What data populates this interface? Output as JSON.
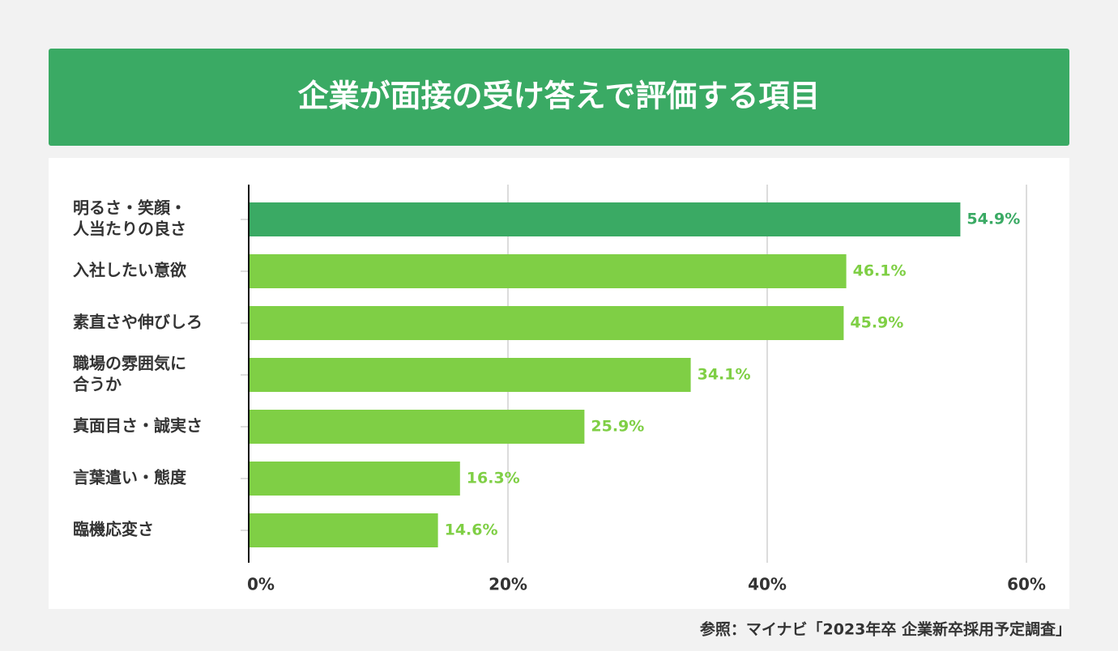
{
  "chart_data": {
    "type": "hbar",
    "title": "企業が面接の受け答えで評価する項目",
    "categories": [
      [
        "明るさ・笑顔・",
        "人当たりの良さ"
      ],
      [
        "入社したい意欲"
      ],
      [
        "素直さや伸びしろ"
      ],
      [
        "職場の雰囲気に",
        "合うか"
      ],
      [
        "真面目さ・誠実さ"
      ],
      [
        "言葉遣い・態度"
      ],
      [
        "臨機応変さ"
      ]
    ],
    "values": [
      54.9,
      46.1,
      45.9,
      34.1,
      25.9,
      16.3,
      14.6
    ],
    "value_labels": [
      "54.9%",
      "46.1%",
      "45.9%",
      "34.1%",
      "25.9%",
      "16.3%",
      "14.6%"
    ],
    "colors": [
      "#3aaa64",
      "#7fcf45",
      "#7fcf45",
      "#7fcf45",
      "#7fcf45",
      "#7fcf45",
      "#7fcf45"
    ],
    "xlim": [
      0,
      60
    ],
    "xticks": [
      {
        "value": 0,
        "label": "0%"
      },
      {
        "value": 20,
        "label": "20%"
      },
      {
        "value": 40,
        "label": "40%"
      },
      {
        "value": 60,
        "label": "60%"
      }
    ],
    "grid": true,
    "source": "参照：マイナビ「2023年卒 企業新卒採用予定調査」"
  }
}
